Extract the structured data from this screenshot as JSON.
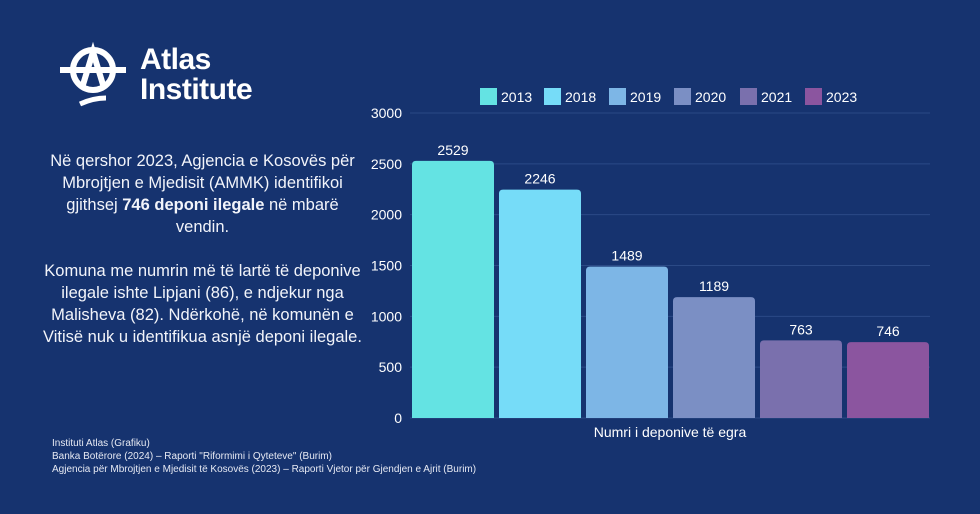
{
  "logo": {
    "name": "Atlas Institute",
    "line1": "Atlas",
    "line2": "Institute"
  },
  "description": {
    "p1_a": "Në qershor 2023, Agjencia e Kosovës për Mbrojtjen e Mjedisit (AMMK) identifikoi gjithsej ",
    "p1_bold": "746 deponi ilegale",
    "p1_b": " në mbarë vendin.",
    "p2": "Komuna me numrin më të lartë të deponive ilegale ishte Lipjani (86), e ndjekur nga Malisheva (82). Ndërkohë, në komunën e Vitisë nuk u identifikua asnjë deponi ilegale."
  },
  "sources": [
    "Instituti Atlas (Grafiku)",
    "Banka Botërore (2024) – Raporti \"Riformimi i Qyteteve\" (Burim)",
    "Agjencia për Mbrojtjen e Mjedisit të Kosovës  (2023) – Raporti Vjetor për Gjendjen e Ajrit (Burim)"
  ],
  "chart_data": {
    "type": "bar",
    "title": "",
    "xlabel": "Numri i deponive të egra",
    "ylabel": "",
    "ylim": [
      0,
      3000
    ],
    "yticks": [
      0,
      500,
      1000,
      1500,
      2000,
      2500,
      3000
    ],
    "grid": true,
    "legend_position": "top",
    "categories": [
      "2013",
      "2018",
      "2019",
      "2020",
      "2021",
      "2023"
    ],
    "values": [
      2529,
      2246,
      1489,
      1189,
      763,
      746
    ],
    "colors": [
      "#64e3e3",
      "#76dcf8",
      "#7db6e6",
      "#7b8fc4",
      "#7a70ad",
      "#8b559f"
    ]
  }
}
